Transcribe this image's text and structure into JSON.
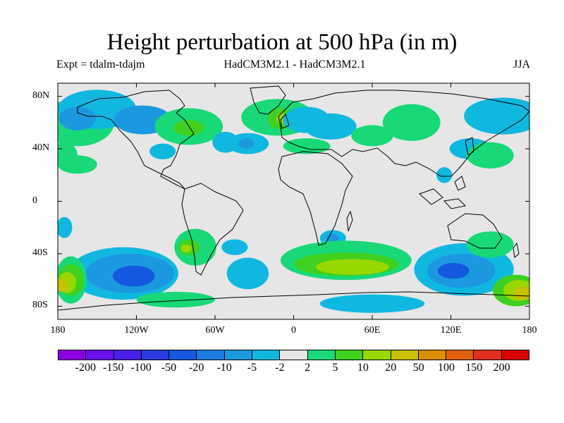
{
  "title": "Height perturbation at 500 hPa (in m)",
  "subtitle_left": "Expt = tdalm-tdajm",
  "subtitle_center": "HadCM3M2.1 - HadCM3M2.1",
  "subtitle_right": "JJA",
  "lat_ticks": [
    "80N",
    "40N",
    "0",
    "40S",
    "80S"
  ],
  "lon_ticks": [
    "180",
    "120W",
    "60W",
    "0",
    "60E",
    "120E",
    "180"
  ],
  "colorbar": {
    "labels": [
      "-200",
      "-150",
      "-100",
      "-50",
      "-20",
      "-10",
      "-5",
      "-2",
      "2",
      "5",
      "10",
      "20",
      "50",
      "100",
      "150",
      "200"
    ],
    "colors": [
      "#8a00e0",
      "#6a10e8",
      "#4a20e8",
      "#2a3ae0",
      "#1458e0",
      "#1c7ce0",
      "#1c98e0",
      "#10b8e0",
      "#e6e6e6",
      "#18d878",
      "#40d020",
      "#98d800",
      "#c8c000",
      "#d89000",
      "#e06010",
      "#e03020",
      "#d80000"
    ]
  },
  "map": {
    "background": "#e6e6e6",
    "regions": [
      {
        "level": "5",
        "color": "#18d878",
        "lon": -165,
        "lat": 60,
        "rx": 28,
        "ry": 18
      },
      {
        "level": "-5",
        "color": "#10b8e0",
        "lon": -150,
        "lat": 70,
        "rx": 30,
        "ry": 15
      },
      {
        "level": "-10",
        "color": "#1c98e0",
        "lon": -165,
        "lat": 63,
        "rx": 14,
        "ry": 9
      },
      {
        "level": "-10",
        "color": "#1c98e0",
        "lon": -115,
        "lat": 62,
        "rx": 22,
        "ry": 11
      },
      {
        "level": "5",
        "color": "#18d878",
        "lon": -80,
        "lat": 57,
        "rx": 26,
        "ry": 14
      },
      {
        "level": "10",
        "color": "#40d020",
        "lon": -80,
        "lat": 56,
        "rx": 12,
        "ry": 6
      },
      {
        "level": "-5",
        "color": "#10b8e0",
        "lon": -100,
        "lat": 38,
        "rx": 10,
        "ry": 6
      },
      {
        "level": "-5",
        "color": "#10b8e0",
        "lon": -52,
        "lat": 45,
        "rx": 10,
        "ry": 8
      },
      {
        "level": "5",
        "color": "#18d878",
        "lon": -165,
        "lat": 28,
        "rx": 15,
        "ry": 7
      },
      {
        "level": "5",
        "color": "#18d878",
        "lon": -12,
        "lat": 64,
        "rx": 28,
        "ry": 14
      },
      {
        "level": "10",
        "color": "#40d020",
        "lon": -10,
        "lat": 63,
        "rx": 10,
        "ry": 8
      },
      {
        "level": "20",
        "color": "#98d800",
        "lon": -9,
        "lat": 63,
        "rx": 4,
        "ry": 4
      },
      {
        "level": "-5",
        "color": "#10b8e0",
        "lon": 10,
        "lat": 62,
        "rx": 18,
        "ry": 10
      },
      {
        "level": "-5",
        "color": "#10b8e0",
        "lon": -35,
        "lat": 44,
        "rx": 16,
        "ry": 8
      },
      {
        "level": "-10",
        "color": "#1c98e0",
        "lon": -36,
        "lat": 44,
        "rx": 6,
        "ry": 4
      },
      {
        "level": "-5",
        "color": "#10b8e0",
        "lon": 28,
        "lat": 57,
        "rx": 20,
        "ry": 10
      },
      {
        "level": "5",
        "color": "#18d878",
        "lon": 60,
        "lat": 50,
        "rx": 16,
        "ry": 8
      },
      {
        "level": "5",
        "color": "#18d878",
        "lon": 90,
        "lat": 60,
        "rx": 22,
        "ry": 14
      },
      {
        "level": "5",
        "color": "#18d878",
        "lon": 10,
        "lat": 42,
        "rx": 18,
        "ry": 6
      },
      {
        "level": "-5",
        "color": "#10b8e0",
        "lon": 160,
        "lat": 65,
        "rx": 30,
        "ry": 14
      },
      {
        "level": "-5",
        "color": "#10b8e0",
        "lon": 135,
        "lat": 40,
        "rx": 16,
        "ry": 8
      },
      {
        "level": "5",
        "color": "#18d878",
        "lon": 150,
        "lat": 35,
        "rx": 18,
        "ry": 10
      },
      {
        "level": "-5",
        "color": "#10b8e0",
        "lon": 115,
        "lat": 20,
        "rx": 6,
        "ry": 6
      },
      {
        "level": "5",
        "color": "#18d878",
        "lon": -175,
        "lat": 35,
        "rx": 10,
        "ry": 10
      },
      {
        "level": "-5",
        "color": "#10b8e0",
        "lon": 170,
        "lat": 70,
        "rx": 10,
        "ry": 8
      },
      {
        "level": "-5",
        "color": "#10b8e0",
        "lon": 30,
        "lat": -28,
        "rx": 10,
        "ry": 6
      },
      {
        "level": "-10",
        "color": "#1c98e0",
        "lon": 30,
        "lat": -28,
        "rx": 5,
        "ry": 3
      },
      {
        "level": "-5",
        "color": "#10b8e0",
        "lon": -130,
        "lat": -55,
        "rx": 42,
        "ry": 20
      },
      {
        "level": "-10",
        "color": "#1c98e0",
        "lon": -125,
        "lat": -55,
        "rx": 34,
        "ry": 15
      },
      {
        "level": "-20",
        "color": "#1458e0",
        "lon": -122,
        "lat": -57,
        "rx": 16,
        "ry": 8
      },
      {
        "level": "-5",
        "color": "#10b8e0",
        "lon": -35,
        "lat": -55,
        "rx": 16,
        "ry": 12
      },
      {
        "level": "5",
        "color": "#18d878",
        "lon": -75,
        "lat": -35,
        "rx": 16,
        "ry": 14
      },
      {
        "level": "10",
        "color": "#40d020",
        "lon": -80,
        "lat": -35,
        "rx": 8,
        "ry": 6
      },
      {
        "level": "20",
        "color": "#98d800",
        "lon": -82,
        "lat": -36,
        "rx": 4,
        "ry": 3
      },
      {
        "level": "-5",
        "color": "#10b8e0",
        "lon": -45,
        "lat": -35,
        "rx": 10,
        "ry": 6
      },
      {
        "level": "5",
        "color": "#18d878",
        "lon": -90,
        "lat": -75,
        "rx": 30,
        "ry": 6
      },
      {
        "level": "5",
        "color": "#18d878",
        "lon": 40,
        "lat": -45,
        "rx": 50,
        "ry": 15
      },
      {
        "level": "10",
        "color": "#40d020",
        "lon": 40,
        "lat": -48,
        "rx": 40,
        "ry": 9
      },
      {
        "level": "20",
        "color": "#98d800",
        "lon": 45,
        "lat": -50,
        "rx": 28,
        "ry": 6
      },
      {
        "level": "-5",
        "color": "#10b8e0",
        "lon": 60,
        "lat": -78,
        "rx": 40,
        "ry": 7
      },
      {
        "level": "-5",
        "color": "#10b8e0",
        "lon": 130,
        "lat": -52,
        "rx": 38,
        "ry": 20
      },
      {
        "level": "-10",
        "color": "#1c98e0",
        "lon": 128,
        "lat": -53,
        "rx": 26,
        "ry": 13
      },
      {
        "level": "-20",
        "color": "#1458e0",
        "lon": 122,
        "lat": -53,
        "rx": 12,
        "ry": 6
      },
      {
        "level": "5",
        "color": "#18d878",
        "lon": 150,
        "lat": -33,
        "rx": 18,
        "ry": 10
      },
      {
        "level": "10",
        "color": "#40d020",
        "lon": 170,
        "lat": -68,
        "rx": 18,
        "ry": 12
      },
      {
        "level": "20",
        "color": "#98d800",
        "lon": 172,
        "lat": -68,
        "rx": 12,
        "ry": 8
      },
      {
        "level": "50",
        "color": "#c8c000",
        "lon": 175,
        "lat": -70,
        "rx": 7,
        "ry": 5
      },
      {
        "level": "5",
        "color": "#18d878",
        "lon": -170,
        "lat": -60,
        "rx": 12,
        "ry": 18
      },
      {
        "level": "10",
        "color": "#40d020",
        "lon": -170,
        "lat": -60,
        "rx": 10,
        "ry": 12
      },
      {
        "level": "20",
        "color": "#98d800",
        "lon": -173,
        "lat": -62,
        "rx": 7,
        "ry": 8
      },
      {
        "level": "50",
        "color": "#c8c000",
        "lon": -177,
        "lat": -64,
        "rx": 4,
        "ry": 5
      },
      {
        "level": "-5",
        "color": "#10b8e0",
        "lon": -175,
        "lat": -20,
        "rx": 6,
        "ry": 8
      }
    ]
  }
}
